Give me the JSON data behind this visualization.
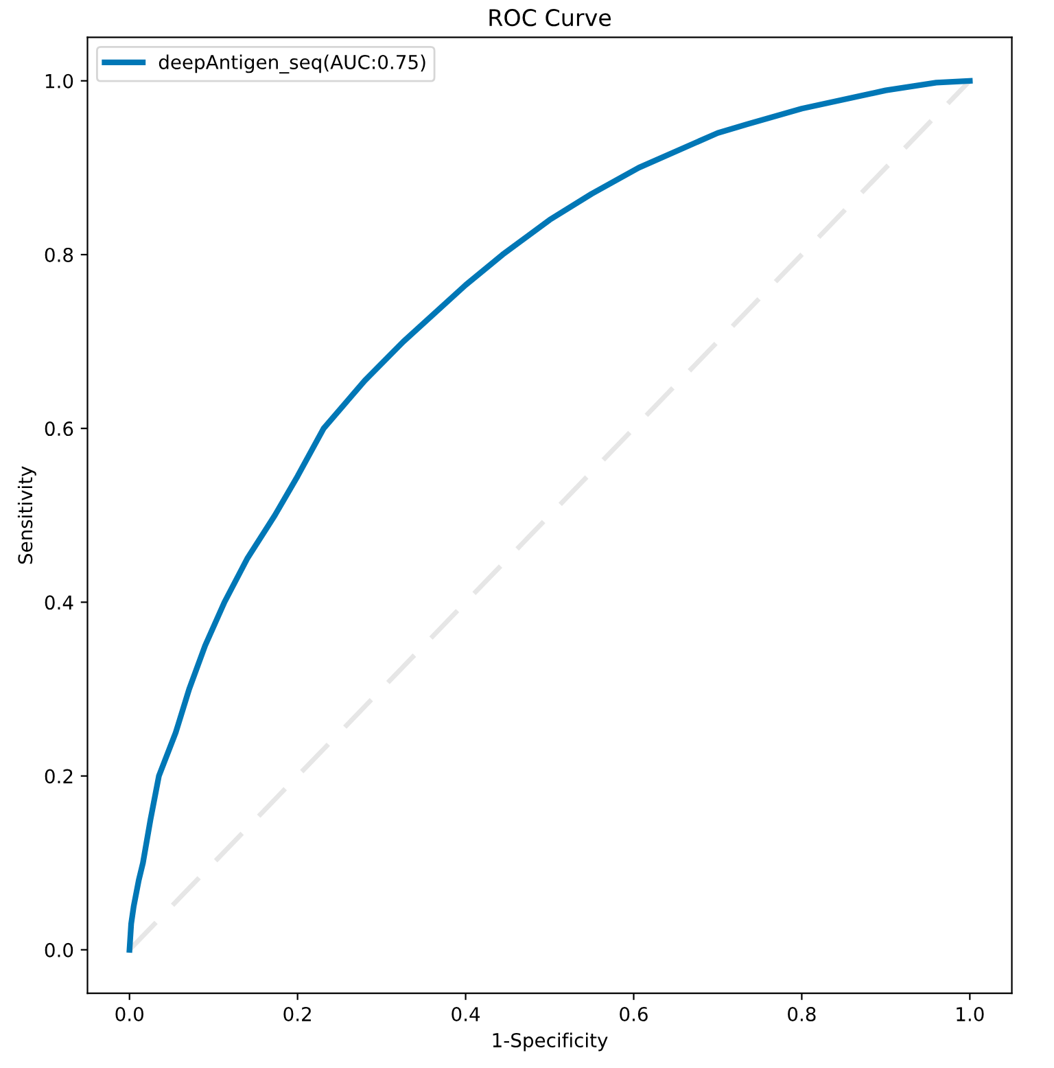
{
  "chart_data": {
    "type": "line",
    "title": "ROC Curve",
    "xlabel": "1-Specificity",
    "ylabel": "Sensitivity",
    "series": [
      {
        "name": "deepAntigen_seq(AUC:0.75)",
        "color": "#0077b6",
        "line_style": "solid",
        "x": [
          0,
          0.002,
          0.005,
          0.011,
          0.016,
          0.025,
          0.035,
          0.055,
          0.071,
          0.09,
          0.113,
          0.14,
          0.173,
          0.2,
          0.231,
          0.28,
          0.326,
          0.4,
          0.444,
          0.5,
          0.55,
          0.606,
          0.7,
          0.735,
          0.8,
          0.9,
          0.96,
          1.0
        ],
        "values": [
          0,
          0.03,
          0.05,
          0.08,
          0.1,
          0.15,
          0.2,
          0.25,
          0.3,
          0.35,
          0.4,
          0.45,
          0.5,
          0.545,
          0.6,
          0.655,
          0.7,
          0.765,
          0.8,
          0.84,
          0.87,
          0.9,
          0.94,
          0.95,
          0.968,
          0.989,
          0.998,
          1.0
        ]
      },
      {
        "color": "#e6e6e6",
        "line_style": "dashed",
        "x": [
          0,
          1
        ],
        "values": [
          0,
          1
        ]
      }
    ],
    "xlim": [
      -0.05,
      1.05
    ],
    "ylim": [
      -0.05,
      1.05
    ],
    "xticks": [
      {
        "value": 0,
        "label": "0.0"
      },
      0.2,
      0.4,
      0.6,
      0.8,
      {
        "value": 1,
        "label": "1.0"
      }
    ],
    "yticks": [
      {
        "value": 0,
        "label": "0.0"
      },
      0.2,
      0.4,
      0.6,
      0.8,
      {
        "value": 1,
        "label": "1.0"
      }
    ],
    "legend": "top left",
    "grid": false,
    "marker": "none"
  }
}
